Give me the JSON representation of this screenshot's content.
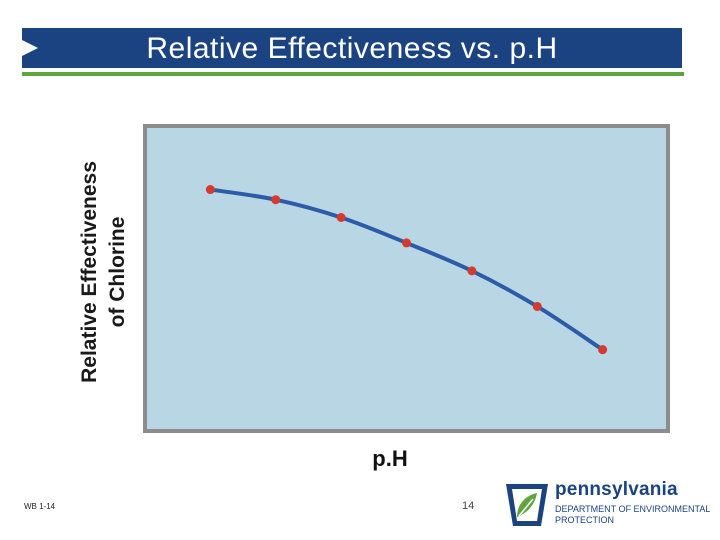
{
  "slide": {
    "title": "Relative Effectiveness vs. p.H",
    "footer_left": "WB 1-14",
    "page_number": "14"
  },
  "logo": {
    "state_name": "pennsylvania",
    "department_line1": "DEPARTMENT OF ENVIRONMENTAL",
    "department_line2": "PROTECTION"
  },
  "colors": {
    "title_bar": "#1b4382",
    "title_rule": "#5fa53f",
    "plot_background": "#b8d6e4",
    "plot_frame": "#8c8c8c",
    "curve": "#2c5ba8",
    "points": "#d43a2f"
  },
  "chart_data": {
    "type": "line",
    "title": "",
    "xlabel": "p.H",
    "ylabel": "Relative Effectiveness of Chlorine",
    "ylabel_lines": [
      "Relative Effectiveness",
      "of Chlorine"
    ],
    "x_ticks_labeled": false,
    "y_ticks_labeled": false,
    "grid": false,
    "legend": "none",
    "x": [
      1,
      2,
      3,
      4,
      5,
      6,
      7
    ],
    "y": [
      0.95,
      0.91,
      0.84,
      0.74,
      0.63,
      0.49,
      0.32
    ],
    "xlim": [
      0,
      8
    ],
    "ylim": [
      0,
      1.2
    ]
  }
}
